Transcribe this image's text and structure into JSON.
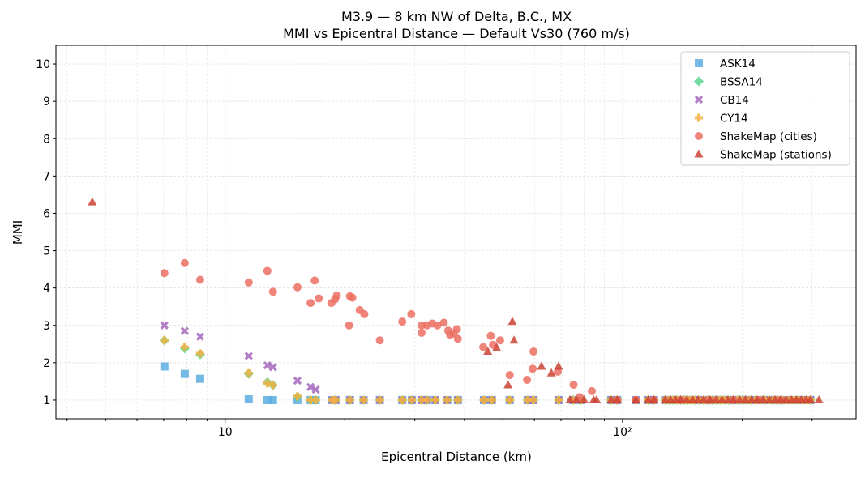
{
  "chart_data": {
    "type": "scatter",
    "title": "M3.9 — 8 km NW of Delta, B.C., MX",
    "subtitle": "MMI vs Epicentral Distance — Default Vs30 (760 m/s)",
    "xlabel": "Epicentral Distance (km)",
    "ylabel": "MMI",
    "xscale": "log",
    "xlim": [
      3.75,
      387
    ],
    "ylim": [
      0.5,
      10.5
    ],
    "xticks": [
      {
        "value": 10,
        "label": "10"
      },
      {
        "value": 100,
        "label": "10²"
      }
    ],
    "yticks": [
      1,
      2,
      3,
      4,
      5,
      6,
      7,
      8,
      9,
      10
    ],
    "grid": true,
    "legend_position": "top-right",
    "gmpe_distances": [
      7.03,
      7.91,
      8.65,
      11.46,
      12.77,
      13.19,
      15.2,
      16.4,
      16.9,
      18.6,
      18.95,
      20.6,
      22.3,
      24.5,
      27.9,
      29.5,
      31.2,
      32.2,
      33.8,
      36.2,
      38.5,
      44.8,
      46.9,
      52.0,
      57.7,
      59.7,
      69.0,
      75.1,
      78.7,
      93.6,
      97,
      107.9,
      116,
      120,
      128,
      131,
      134,
      137,
      140,
      143,
      146,
      149,
      152,
      156,
      160,
      164,
      168,
      172,
      176,
      180,
      185,
      190,
      195,
      200,
      205,
      210,
      216,
      222,
      228,
      234,
      240,
      246,
      252,
      258,
      264,
      270,
      277,
      284,
      291,
      297
    ],
    "series": [
      {
        "name": "ASK14",
        "marker": "square",
        "color": "#5dade2",
        "head": [
          1.9,
          1.7,
          1.57,
          1.02
        ],
        "rest": 1.0
      },
      {
        "name": "BSSA14",
        "marker": "diamond",
        "color": "#58d68d",
        "head": [
          2.6,
          2.38,
          2.22,
          1.7,
          1.48,
          1.4,
          1.08
        ],
        "rest": 1.0
      },
      {
        "name": "CB14",
        "marker": "x",
        "color": "#a569bd",
        "head": [
          3.0,
          2.85,
          2.7,
          2.18,
          1.93,
          1.88,
          1.52,
          1.35,
          1.28
        ],
        "rest": 1.0
      },
      {
        "name": "CY14",
        "marker": "plus",
        "color": "#f5b041",
        "head": [
          2.6,
          2.42,
          2.25,
          1.72,
          1.45,
          1.4,
          1.1
        ],
        "rest": 1.0
      },
      {
        "name": "ShakeMap (cities)",
        "marker": "circle",
        "color": "#ec7063",
        "points": [
          [
            7.03,
            4.4
          ],
          [
            7.91,
            4.67
          ],
          [
            8.65,
            4.22
          ],
          [
            11.46,
            4.15
          ],
          [
            12.77,
            4.46
          ],
          [
            13.19,
            3.9
          ],
          [
            15.2,
            4.02
          ],
          [
            16.4,
            3.6
          ],
          [
            16.8,
            4.2
          ],
          [
            17.2,
            3.72
          ],
          [
            18.5,
            3.6
          ],
          [
            18.9,
            3.7
          ],
          [
            19.1,
            3.8
          ],
          [
            20.6,
            3.78
          ],
          [
            20.9,
            3.74
          ],
          [
            20.5,
            3.0
          ],
          [
            21.8,
            3.41
          ],
          [
            22.4,
            3.3
          ],
          [
            24.5,
            2.6
          ],
          [
            27.9,
            3.1
          ],
          [
            29.4,
            3.3
          ],
          [
            31.2,
            2.8
          ],
          [
            31.2,
            3.0
          ],
          [
            32.2,
            3.0
          ],
          [
            33.2,
            3.05
          ],
          [
            34.2,
            3.0
          ],
          [
            35.5,
            3.07
          ],
          [
            36.4,
            2.86
          ],
          [
            36.8,
            2.75
          ],
          [
            37.6,
            2.78
          ],
          [
            38.3,
            2.9
          ],
          [
            38.5,
            2.64
          ],
          [
            44.6,
            2.42
          ],
          [
            46.6,
            2.72
          ],
          [
            47.2,
            2.48
          ],
          [
            49.2,
            2.6
          ],
          [
            52.0,
            1.67
          ],
          [
            57.5,
            1.54
          ],
          [
            59.4,
            1.84
          ],
          [
            59.7,
            2.3
          ],
          [
            68.7,
            1.76
          ],
          [
            75.3,
            1.41
          ],
          [
            78.0,
            1.08
          ],
          [
            83.7,
            1.24
          ],
          [
            97,
            1.0
          ],
          [
            108,
            1.0
          ],
          [
            120,
            1.0
          ],
          [
            140,
            1.0
          ],
          [
            165,
            1.0
          ],
          [
            190,
            1.0
          ],
          [
            220,
            1.0
          ],
          [
            250,
            1.0
          ]
        ]
      },
      {
        "name": "ShakeMap (stations)",
        "marker": "triangle",
        "color": "#cb4335",
        "points": [
          [
            4.63,
            6.3
          ],
          [
            45.8,
            2.3
          ],
          [
            48.2,
            2.4
          ],
          [
            52.8,
            3.1
          ],
          [
            53.3,
            2.6
          ],
          [
            51.5,
            1.4
          ],
          [
            62.5,
            1.9
          ],
          [
            66.2,
            1.72
          ],
          [
            69.0,
            1.9
          ],
          [
            73.7,
            1.0
          ],
          [
            76.5,
            1.0
          ],
          [
            80,
            1.0
          ],
          [
            84.6,
            1.0
          ],
          [
            86,
            1.0
          ],
          [
            93.6,
            1.0
          ],
          [
            97,
            1.0
          ],
          [
            108,
            1.0
          ],
          [
            116,
            1.0
          ],
          [
            120,
            1.0
          ],
          [
            128,
            1.0
          ],
          [
            132,
            1.0
          ],
          [
            136,
            1.0
          ],
          [
            140,
            1.0
          ],
          [
            145,
            1.0
          ],
          [
            150,
            1.0
          ],
          [
            155,
            1.0
          ],
          [
            160,
            1.0
          ],
          [
            166,
            1.0
          ],
          [
            172,
            1.0
          ],
          [
            178,
            1.0
          ],
          [
            184,
            1.0
          ],
          [
            190,
            1.0
          ],
          [
            197,
            1.0
          ],
          [
            204,
            1.0
          ],
          [
            211,
            1.0
          ],
          [
            218,
            1.0
          ],
          [
            226,
            1.0
          ],
          [
            234,
            1.0
          ],
          [
            242,
            1.0
          ],
          [
            250,
            1.0
          ],
          [
            258,
            1.0
          ],
          [
            266,
            1.0
          ],
          [
            274,
            1.0
          ],
          [
            282,
            1.0
          ],
          [
            290,
            1.0
          ],
          [
            297,
            1.0
          ],
          [
            312,
            1.0
          ]
        ]
      }
    ]
  }
}
